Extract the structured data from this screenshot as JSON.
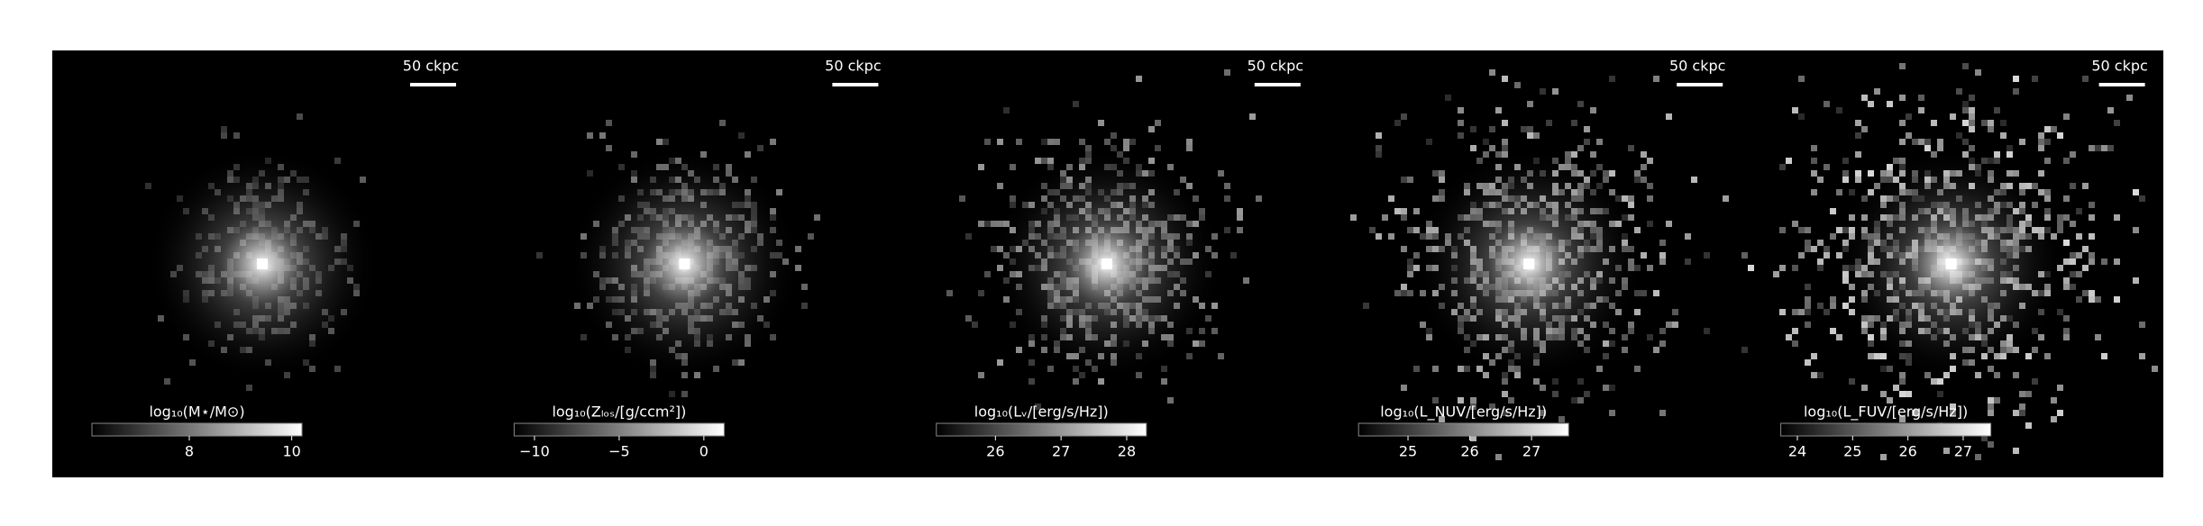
{
  "chart_data": [
    {
      "type": "image",
      "colorbar_label": "log₁₀(M⋆/M⊙)",
      "scale_bar": "50 ckpc",
      "clim": [
        6.1,
        10.2
      ],
      "cticks": [
        8,
        10
      ]
    },
    {
      "type": "image",
      "colorbar_label": "log₁₀(Zₗₒₛ/[g/ccm²])",
      "scale_bar": "50 ckpc",
      "clim": [
        -11.2,
        1.2
      ],
      "cticks": [
        {
          "value": -10,
          "label": "−10"
        },
        {
          "value": -5,
          "label": "−5"
        },
        0
      ]
    },
    {
      "type": "image",
      "colorbar_label": "log₁₀(Lᵥ/[erg/s/Hz])",
      "scale_bar": "50 ckpc",
      "clim": [
        25.1,
        28.3
      ],
      "cticks": [
        26,
        27,
        28
      ]
    },
    {
      "type": "image",
      "colorbar_label": "log₁₀(L_NUV/[erg/s/Hz])",
      "scale_bar": "50 ckpc",
      "clim": [
        24.2,
        27.6
      ],
      "cticks": [
        25,
        26,
        27
      ]
    },
    {
      "type": "image",
      "colorbar_label": "log₁₀(L_FUV/[erg/s/Hz])",
      "scale_bar": "50 ckpc",
      "clim": [
        23.7,
        27.5
      ],
      "cticks": [
        24,
        25,
        26,
        27
      ]
    }
  ]
}
